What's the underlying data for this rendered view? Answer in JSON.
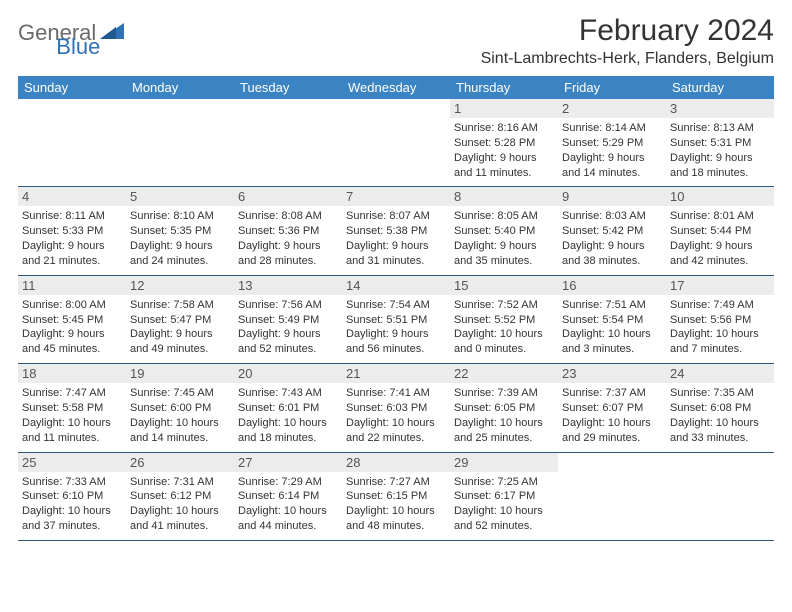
{
  "logo": {
    "text1": "General",
    "text2": "Blue"
  },
  "header": {
    "title": "February 2024",
    "location": "Sint-Lambrechts-Herk, Flanders, Belgium"
  },
  "colors": {
    "header_bg": "#3b84c4",
    "header_text": "#ffffff",
    "day_number_bg": "#ececec",
    "border": "#2f5a85",
    "logo_gray": "#6a6a6a",
    "logo_blue": "#2f72b6"
  },
  "weekdays": [
    "Sunday",
    "Monday",
    "Tuesday",
    "Wednesday",
    "Thursday",
    "Friday",
    "Saturday"
  ],
  "weeks": [
    [
      null,
      null,
      null,
      null,
      {
        "n": "1",
        "sunrise": "8:16 AM",
        "sunset": "5:28 PM",
        "dh": "9",
        "dm": "11"
      },
      {
        "n": "2",
        "sunrise": "8:14 AM",
        "sunset": "5:29 PM",
        "dh": "9",
        "dm": "14"
      },
      {
        "n": "3",
        "sunrise": "8:13 AM",
        "sunset": "5:31 PM",
        "dh": "9",
        "dm": "18"
      }
    ],
    [
      {
        "n": "4",
        "sunrise": "8:11 AM",
        "sunset": "5:33 PM",
        "dh": "9",
        "dm": "21"
      },
      {
        "n": "5",
        "sunrise": "8:10 AM",
        "sunset": "5:35 PM",
        "dh": "9",
        "dm": "24"
      },
      {
        "n": "6",
        "sunrise": "8:08 AM",
        "sunset": "5:36 PM",
        "dh": "9",
        "dm": "28"
      },
      {
        "n": "7",
        "sunrise": "8:07 AM",
        "sunset": "5:38 PM",
        "dh": "9",
        "dm": "31"
      },
      {
        "n": "8",
        "sunrise": "8:05 AM",
        "sunset": "5:40 PM",
        "dh": "9",
        "dm": "35"
      },
      {
        "n": "9",
        "sunrise": "8:03 AM",
        "sunset": "5:42 PM",
        "dh": "9",
        "dm": "38"
      },
      {
        "n": "10",
        "sunrise": "8:01 AM",
        "sunset": "5:44 PM",
        "dh": "9",
        "dm": "42"
      }
    ],
    [
      {
        "n": "11",
        "sunrise": "8:00 AM",
        "sunset": "5:45 PM",
        "dh": "9",
        "dm": "45"
      },
      {
        "n": "12",
        "sunrise": "7:58 AM",
        "sunset": "5:47 PM",
        "dh": "9",
        "dm": "49"
      },
      {
        "n": "13",
        "sunrise": "7:56 AM",
        "sunset": "5:49 PM",
        "dh": "9",
        "dm": "52"
      },
      {
        "n": "14",
        "sunrise": "7:54 AM",
        "sunset": "5:51 PM",
        "dh": "9",
        "dm": "56"
      },
      {
        "n": "15",
        "sunrise": "7:52 AM",
        "sunset": "5:52 PM",
        "dh": "10",
        "dm": "0"
      },
      {
        "n": "16",
        "sunrise": "7:51 AM",
        "sunset": "5:54 PM",
        "dh": "10",
        "dm": "3"
      },
      {
        "n": "17",
        "sunrise": "7:49 AM",
        "sunset": "5:56 PM",
        "dh": "10",
        "dm": "7"
      }
    ],
    [
      {
        "n": "18",
        "sunrise": "7:47 AM",
        "sunset": "5:58 PM",
        "dh": "10",
        "dm": "11"
      },
      {
        "n": "19",
        "sunrise": "7:45 AM",
        "sunset": "6:00 PM",
        "dh": "10",
        "dm": "14"
      },
      {
        "n": "20",
        "sunrise": "7:43 AM",
        "sunset": "6:01 PM",
        "dh": "10",
        "dm": "18"
      },
      {
        "n": "21",
        "sunrise": "7:41 AM",
        "sunset": "6:03 PM",
        "dh": "10",
        "dm": "22"
      },
      {
        "n": "22",
        "sunrise": "7:39 AM",
        "sunset": "6:05 PM",
        "dh": "10",
        "dm": "25"
      },
      {
        "n": "23",
        "sunrise": "7:37 AM",
        "sunset": "6:07 PM",
        "dh": "10",
        "dm": "29"
      },
      {
        "n": "24",
        "sunrise": "7:35 AM",
        "sunset": "6:08 PM",
        "dh": "10",
        "dm": "33"
      }
    ],
    [
      {
        "n": "25",
        "sunrise": "7:33 AM",
        "sunset": "6:10 PM",
        "dh": "10",
        "dm": "37"
      },
      {
        "n": "26",
        "sunrise": "7:31 AM",
        "sunset": "6:12 PM",
        "dh": "10",
        "dm": "41"
      },
      {
        "n": "27",
        "sunrise": "7:29 AM",
        "sunset": "6:14 PM",
        "dh": "10",
        "dm": "44"
      },
      {
        "n": "28",
        "sunrise": "7:27 AM",
        "sunset": "6:15 PM",
        "dh": "10",
        "dm": "48"
      },
      {
        "n": "29",
        "sunrise": "7:25 AM",
        "sunset": "6:17 PM",
        "dh": "10",
        "dm": "52"
      },
      null,
      null
    ]
  ],
  "labels": {
    "sunrise": "Sunrise:",
    "sunset": "Sunset:",
    "daylight": "Daylight:",
    "hours": "hours",
    "and": "and",
    "minutes": "minutes."
  }
}
